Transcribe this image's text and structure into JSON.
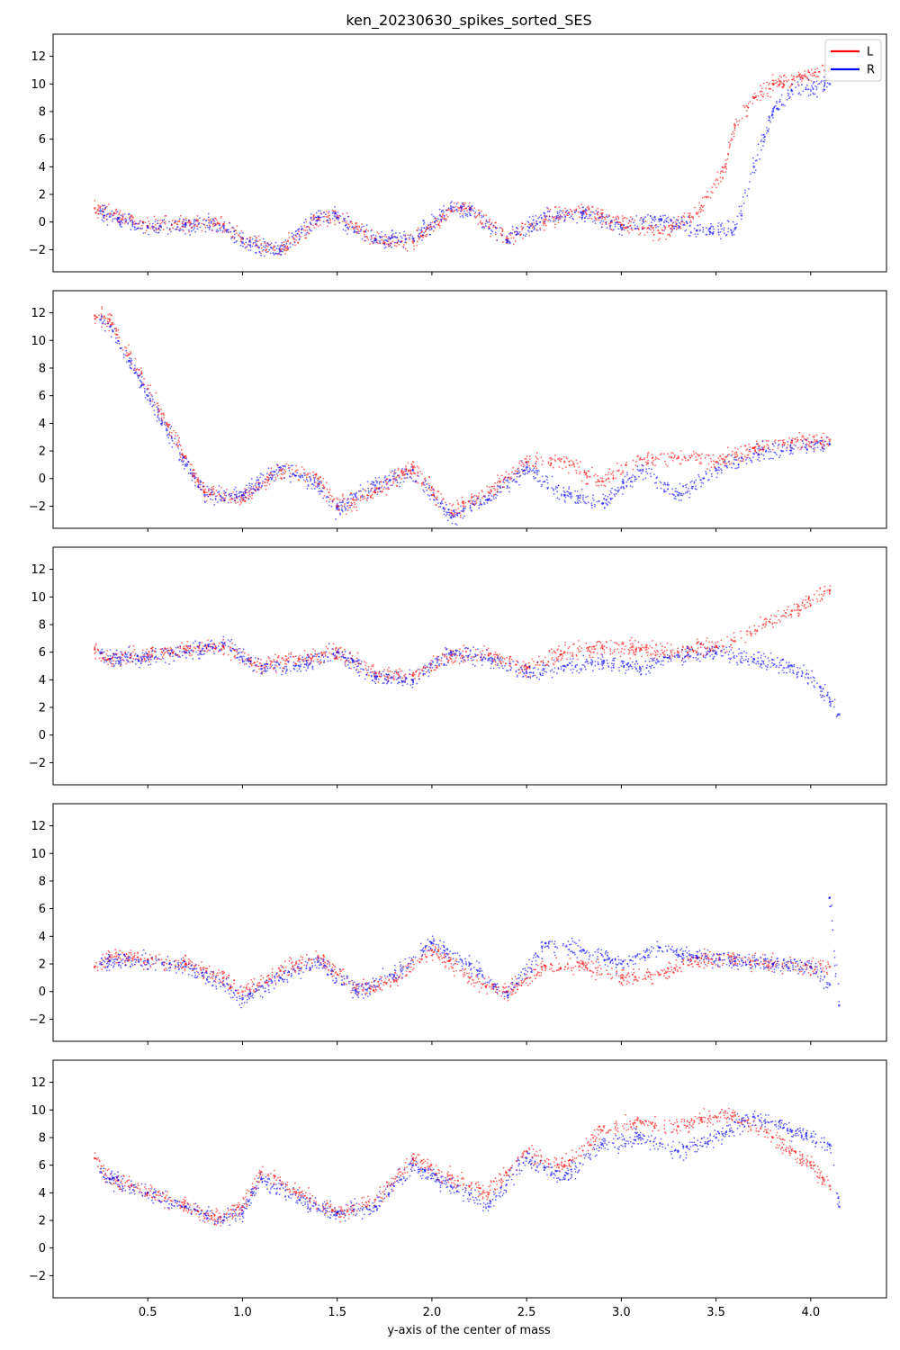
{
  "chart_data": {
    "type": "scatter",
    "title": "ken_20230630_spikes_sorted_SES",
    "xlabel": "y-axis of the center of mass",
    "ylabel": "",
    "xlim": [
      0.0,
      4.4
    ],
    "ylim": [
      -3.6,
      13.6
    ],
    "x_ticks": [
      0.5,
      1.0,
      1.5,
      2.0,
      2.5,
      3.0,
      3.5,
      4.0
    ],
    "x_tick_labels": [
      "0.5",
      "1.0",
      "1.5",
      "2.0",
      "2.5",
      "3.0",
      "3.5",
      "4.0"
    ],
    "y_ticks": [
      -2,
      0,
      2,
      4,
      6,
      8,
      10,
      12
    ],
    "y_tick_labels": [
      "−2",
      "0",
      "2",
      "4",
      "6",
      "8",
      "10",
      "12"
    ],
    "sharex": true,
    "grid": false,
    "legend": {
      "placement": "top-right",
      "entries": [
        {
          "label": "L",
          "color": "#ff0000"
        },
        {
          "label": "R",
          "color": "#0000ff"
        }
      ]
    },
    "colors": {
      "L": "#ff0000",
      "R": "#0000ff"
    },
    "panels": [
      {
        "series": [
          {
            "name": "L",
            "points": [
              [
                0.22,
                1.0
              ],
              [
                0.3,
                0.6
              ],
              [
                0.5,
                -0.3
              ],
              [
                0.7,
                -0.1
              ],
              [
                0.9,
                -0.2
              ],
              [
                1.0,
                -1.2
              ],
              [
                1.2,
                -2.0
              ],
              [
                1.4,
                0.2
              ],
              [
                1.5,
                0.4
              ],
              [
                1.7,
                -1.2
              ],
              [
                1.9,
                -1.4
              ],
              [
                2.1,
                0.8
              ],
              [
                2.2,
                1.0
              ],
              [
                2.4,
                -1.2
              ],
              [
                2.6,
                0.2
              ],
              [
                2.8,
                0.8
              ],
              [
                3.0,
                -0.2
              ],
              [
                3.2,
                -0.8
              ],
              [
                3.4,
                0.6
              ],
              [
                3.45,
                1.8
              ],
              [
                3.55,
                4.0
              ],
              [
                3.6,
                7.0
              ],
              [
                3.7,
                9.0
              ],
              [
                3.8,
                10.0
              ],
              [
                3.95,
                10.5
              ],
              [
                4.1,
                11.0
              ]
            ]
          },
          {
            "name": "R",
            "points": [
              [
                0.25,
                0.8
              ],
              [
                0.3,
                0.4
              ],
              [
                0.5,
                -0.4
              ],
              [
                0.7,
                -0.2
              ],
              [
                0.9,
                -0.3
              ],
              [
                1.0,
                -1.5
              ],
              [
                1.2,
                -2.1
              ],
              [
                1.4,
                0.4
              ],
              [
                1.5,
                0.3
              ],
              [
                1.7,
                -1.3
              ],
              [
                1.9,
                -1.2
              ],
              [
                2.1,
                1.0
              ],
              [
                2.2,
                0.9
              ],
              [
                2.4,
                -1.4
              ],
              [
                2.6,
                0.4
              ],
              [
                2.8,
                0.6
              ],
              [
                3.0,
                -0.4
              ],
              [
                3.2,
                0.2
              ],
              [
                3.4,
                -0.6
              ],
              [
                3.6,
                -0.5
              ],
              [
                3.7,
                4.0
              ],
              [
                3.8,
                8.0
              ],
              [
                3.9,
                9.5
              ],
              [
                4.1,
                10.0
              ]
            ]
          }
        ]
      },
      {
        "series": [
          {
            "name": "L",
            "points": [
              [
                0.22,
                11.8
              ],
              [
                0.3,
                11.5
              ],
              [
                0.4,
                9.0
              ],
              [
                0.5,
                6.5
              ],
              [
                0.6,
                4.0
              ],
              [
                0.7,
                1.5
              ],
              [
                0.8,
                -1.0
              ],
              [
                1.0,
                -1.5
              ],
              [
                1.2,
                0.6
              ],
              [
                1.4,
                0.0
              ],
              [
                1.5,
                -2.0
              ],
              [
                1.7,
                -1.0
              ],
              [
                1.9,
                0.8
              ],
              [
                2.1,
                -2.5
              ],
              [
                2.3,
                -1.0
              ],
              [
                2.5,
                1.2
              ],
              [
                2.7,
                1.2
              ],
              [
                2.9,
                -0.2
              ],
              [
                3.1,
                1.4
              ],
              [
                3.3,
                1.5
              ],
              [
                3.5,
                1.2
              ],
              [
                3.7,
                2.2
              ],
              [
                3.9,
                2.6
              ],
              [
                4.1,
                2.8
              ]
            ]
          },
          {
            "name": "R",
            "points": [
              [
                0.25,
                11.5
              ],
              [
                0.3,
                11.0
              ],
              [
                0.4,
                8.5
              ],
              [
                0.5,
                6.0
              ],
              [
                0.6,
                3.5
              ],
              [
                0.7,
                1.0
              ],
              [
                0.8,
                -1.2
              ],
              [
                1.0,
                -1.2
              ],
              [
                1.2,
                0.8
              ],
              [
                1.4,
                -0.5
              ],
              [
                1.5,
                -2.2
              ],
              [
                1.7,
                -0.5
              ],
              [
                1.9,
                0.6
              ],
              [
                2.1,
                -2.8
              ],
              [
                2.3,
                -1.5
              ],
              [
                2.5,
                0.8
              ],
              [
                2.7,
                -1.2
              ],
              [
                2.9,
                -1.8
              ],
              [
                3.1,
                0.6
              ],
              [
                3.3,
                -1.2
              ],
              [
                3.5,
                0.6
              ],
              [
                3.7,
                1.8
              ],
              [
                3.9,
                2.2
              ],
              [
                4.1,
                2.5
              ]
            ]
          }
        ]
      },
      {
        "series": [
          {
            "name": "L",
            "points": [
              [
                0.22,
                6.2
              ],
              [
                0.3,
                5.5
              ],
              [
                0.5,
                5.8
              ],
              [
                0.7,
                6.2
              ],
              [
                0.9,
                6.4
              ],
              [
                1.1,
                5.0
              ],
              [
                1.3,
                5.5
              ],
              [
                1.5,
                6.0
              ],
              [
                1.7,
                4.5
              ],
              [
                1.9,
                4.3
              ],
              [
                2.1,
                5.8
              ],
              [
                2.3,
                5.8
              ],
              [
                2.5,
                4.8
              ],
              [
                2.7,
                6.0
              ],
              [
                2.9,
                6.4
              ],
              [
                3.1,
                6.2
              ],
              [
                3.3,
                6.0
              ],
              [
                3.5,
                6.4
              ],
              [
                3.6,
                6.8
              ],
              [
                3.75,
                8.0
              ],
              [
                3.9,
                9.0
              ],
              [
                4.1,
                10.5
              ]
            ]
          },
          {
            "name": "R",
            "points": [
              [
                0.25,
                6.0
              ],
              [
                0.3,
                5.5
              ],
              [
                0.5,
                5.6
              ],
              [
                0.7,
                6.0
              ],
              [
                0.9,
                6.6
              ],
              [
                1.1,
                4.8
              ],
              [
                1.3,
                5.0
              ],
              [
                1.5,
                6.0
              ],
              [
                1.7,
                4.2
              ],
              [
                1.9,
                4.0
              ],
              [
                2.1,
                6.0
              ],
              [
                2.3,
                5.5
              ],
              [
                2.5,
                4.5
              ],
              [
                2.7,
                5.0
              ],
              [
                2.9,
                5.3
              ],
              [
                3.1,
                4.8
              ],
              [
                3.3,
                5.8
              ],
              [
                3.5,
                6.0
              ],
              [
                3.7,
                5.5
              ],
              [
                3.9,
                5.0
              ],
              [
                4.05,
                3.5
              ],
              [
                4.15,
                1.5
              ]
            ]
          }
        ]
      },
      {
        "series": [
          {
            "name": "L",
            "points": [
              [
                0.22,
                1.8
              ],
              [
                0.3,
                2.5
              ],
              [
                0.5,
                2.3
              ],
              [
                0.7,
                2.0
              ],
              [
                0.9,
                1.0
              ],
              [
                1.0,
                0.0
              ],
              [
                1.2,
                1.5
              ],
              [
                1.4,
                2.5
              ],
              [
                1.6,
                0.2
              ],
              [
                1.8,
                0.8
              ],
              [
                2.0,
                3.0
              ],
              [
                2.2,
                1.0
              ],
              [
                2.4,
                0.0
              ],
              [
                2.6,
                1.8
              ],
              [
                2.8,
                2.0
              ],
              [
                3.0,
                1.0
              ],
              [
                3.2,
                1.2
              ],
              [
                3.4,
                2.4
              ],
              [
                3.6,
                2.4
              ],
              [
                3.8,
                2.0
              ],
              [
                4.0,
                1.8
              ],
              [
                4.1,
                1.8
              ]
            ]
          },
          {
            "name": "R",
            "points": [
              [
                0.25,
                2.0
              ],
              [
                0.3,
                2.2
              ],
              [
                0.5,
                2.2
              ],
              [
                0.7,
                1.8
              ],
              [
                0.9,
                0.5
              ],
              [
                1.0,
                -0.5
              ],
              [
                1.2,
                1.0
              ],
              [
                1.4,
                2.2
              ],
              [
                1.6,
                0.0
              ],
              [
                1.8,
                1.2
              ],
              [
                2.0,
                3.5
              ],
              [
                2.2,
                2.0
              ],
              [
                2.4,
                -0.3
              ],
              [
                2.6,
                3.5
              ],
              [
                2.8,
                3.0
              ],
              [
                3.0,
                2.0
              ],
              [
                3.2,
                3.2
              ],
              [
                3.4,
                2.5
              ],
              [
                3.6,
                2.2
              ],
              [
                3.8,
                2.0
              ],
              [
                4.0,
                1.8
              ],
              [
                4.1,
                0.5
              ],
              [
                4.15,
                -1.0
              ],
              [
                4.1,
                6.8
              ]
            ]
          }
        ]
      },
      {
        "series": [
          {
            "name": "L",
            "points": [
              [
                0.22,
                6.5
              ],
              [
                0.3,
                5.0
              ],
              [
                0.5,
                4.0
              ],
              [
                0.7,
                3.0
              ],
              [
                0.9,
                2.0
              ],
              [
                1.0,
                3.0
              ],
              [
                1.1,
                5.5
              ],
              [
                1.3,
                4.0
              ],
              [
                1.5,
                2.5
              ],
              [
                1.7,
                3.5
              ],
              [
                1.9,
                6.5
              ],
              [
                2.1,
                5.0
              ],
              [
                2.3,
                4.0
              ],
              [
                2.5,
                7.0
              ],
              [
                2.7,
                6.0
              ],
              [
                2.9,
                8.5
              ],
              [
                3.1,
                9.2
              ],
              [
                3.3,
                8.8
              ],
              [
                3.5,
                9.5
              ],
              [
                3.6,
                9.6
              ],
              [
                3.8,
                8.0
              ],
              [
                4.0,
                6.0
              ],
              [
                4.1,
                4.5
              ]
            ]
          },
          {
            "name": "R",
            "points": [
              [
                0.25,
                5.5
              ],
              [
                0.3,
                5.0
              ],
              [
                0.5,
                4.0
              ],
              [
                0.7,
                3.0
              ],
              [
                0.9,
                2.0
              ],
              [
                1.0,
                2.5
              ],
              [
                1.1,
                5.0
              ],
              [
                1.3,
                3.5
              ],
              [
                1.5,
                2.6
              ],
              [
                1.7,
                3.0
              ],
              [
                1.9,
                6.0
              ],
              [
                2.1,
                4.5
              ],
              [
                2.3,
                3.0
              ],
              [
                2.5,
                6.5
              ],
              [
                2.7,
                5.0
              ],
              [
                2.9,
                7.5
              ],
              [
                3.1,
                8.0
              ],
              [
                3.3,
                7.0
              ],
              [
                3.5,
                8.0
              ],
              [
                3.7,
                9.5
              ],
              [
                3.9,
                8.5
              ],
              [
                4.1,
                7.5
              ],
              [
                4.15,
                3.0
              ]
            ]
          }
        ]
      }
    ]
  }
}
